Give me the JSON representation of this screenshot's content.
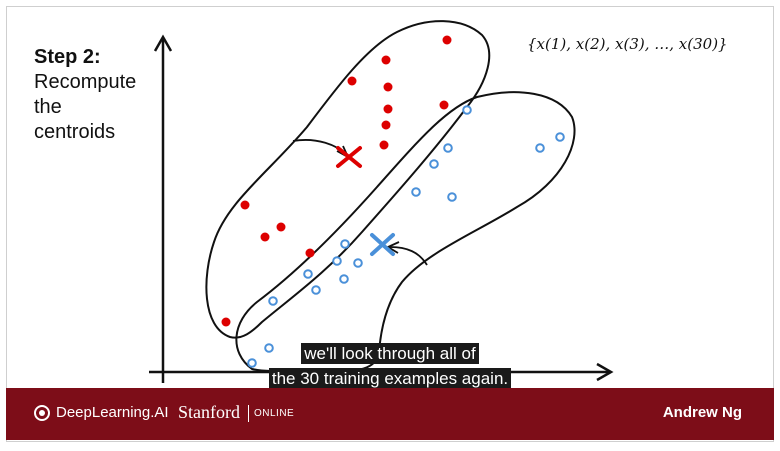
{
  "slide": {
    "step_label": "Step 2:",
    "step_lines": [
      "Recompute",
      "the",
      "centroids"
    ],
    "set_notation": "{x(1), x(2), x(3), …, x(30)}"
  },
  "caption": {
    "line1": "we'll look through all of",
    "line2": "the 30 training examples again."
  },
  "footer": {
    "brand": "DeepLearning.AI",
    "university": "Stanford",
    "university_suffix": "ONLINE",
    "author": "Andrew Ng"
  },
  "colors": {
    "cluster_red": "#dd0000",
    "cluster_blue": "#4a90d9",
    "footer_bg": "#7d0d18"
  }
}
